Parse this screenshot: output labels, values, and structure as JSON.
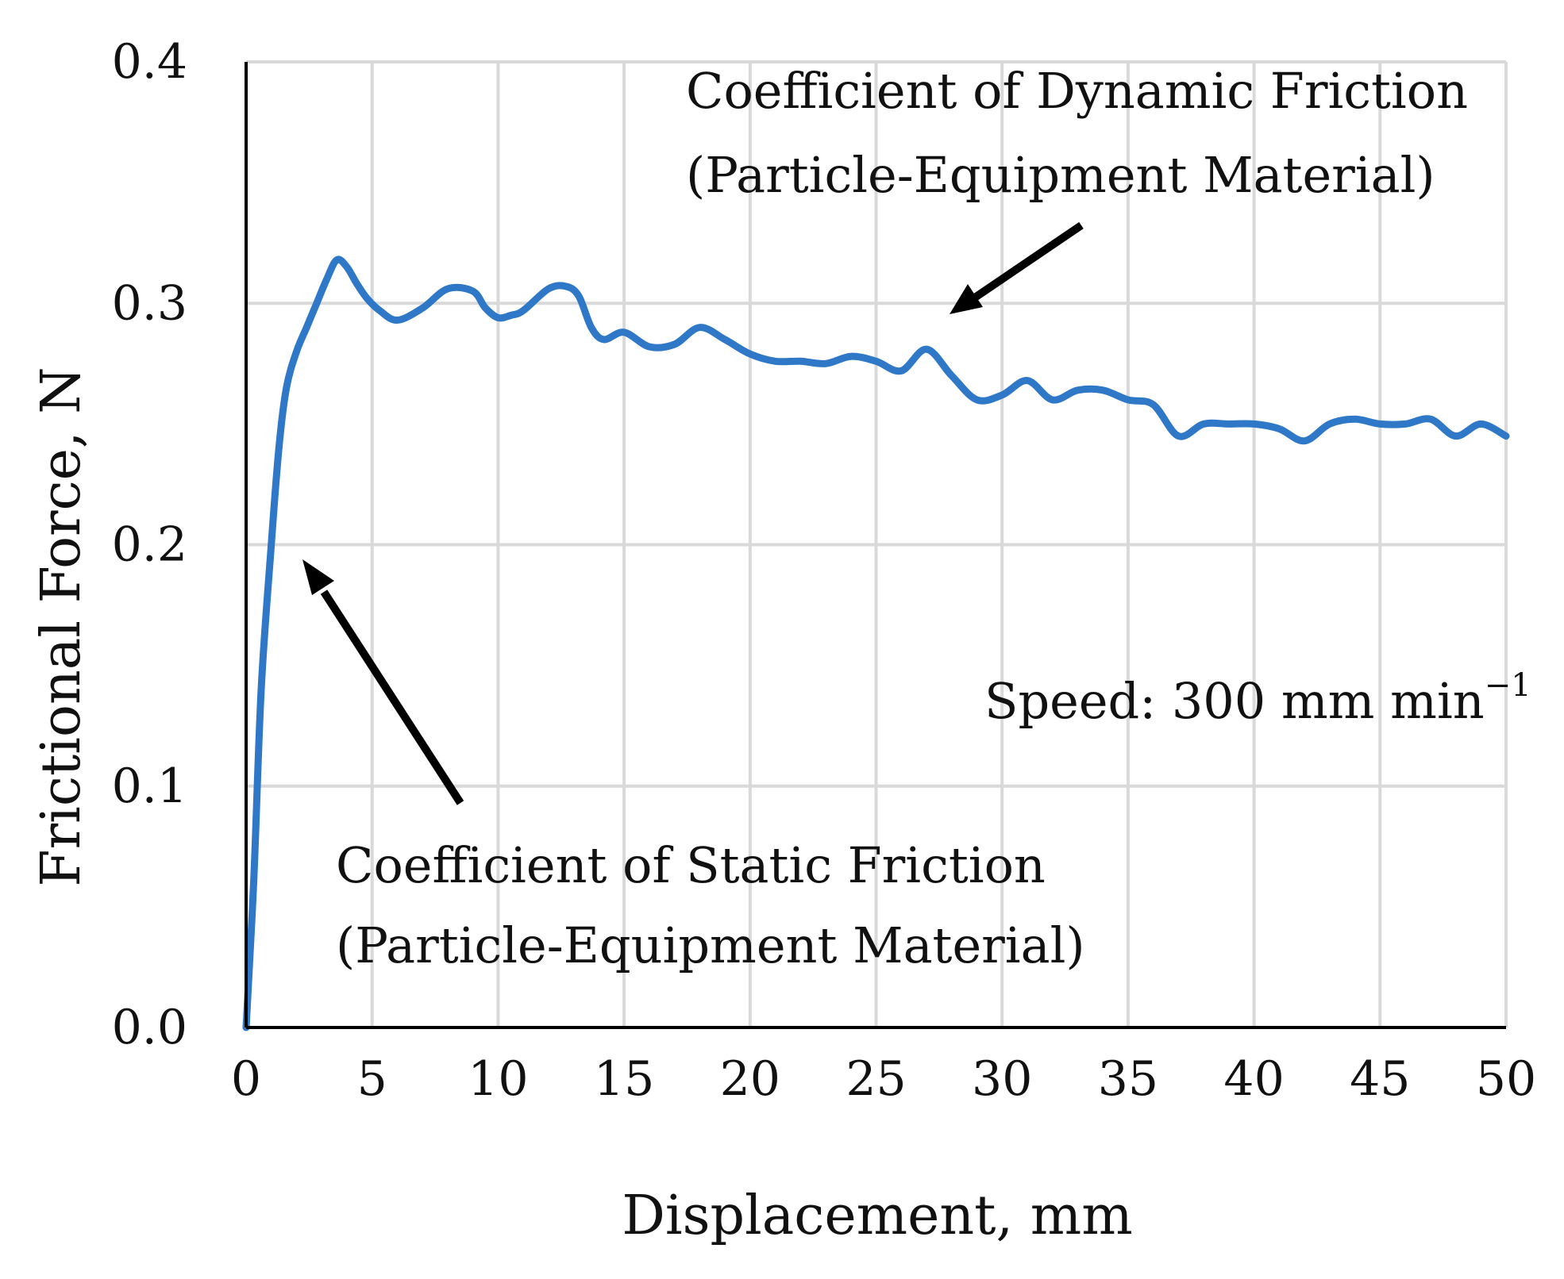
{
  "chart_data": {
    "type": "line",
    "title": "",
    "xlabel": "Displacement, mm",
    "ylabel": "Frictional Force, N",
    "xlim": [
      0,
      50
    ],
    "ylim": [
      0,
      0.4
    ],
    "grid": true,
    "x_ticks": [
      0,
      5,
      10,
      15,
      20,
      25,
      30,
      35,
      40,
      45,
      50
    ],
    "x_tick_labels": [
      "0",
      "5",
      "10",
      "15",
      "20",
      "25",
      "30",
      "35",
      "40",
      "45",
      "50"
    ],
    "y_ticks": [
      0,
      0.1,
      0.2,
      0.3,
      0.4
    ],
    "y_tick_labels": [
      "0.0",
      "0.1",
      "0.2",
      "0.3",
      "0.4"
    ],
    "line_color": "#2f78c8",
    "series": [
      {
        "name": "Frictional Force",
        "x": [
          0,
          0.3,
          0.6,
          1.0,
          1.3,
          1.6,
          2.0,
          2.4,
          2.8,
          3.2,
          3.6,
          4.0,
          4.4,
          4.8,
          5.3,
          6.0,
          7.0,
          8.0,
          9.0,
          9.5,
          10.0,
          10.5,
          11.0,
          12.0,
          12.7,
          13.2,
          13.7,
          14.2,
          15.0,
          16.0,
          17.0,
          18.0,
          19.0,
          20.0,
          21.0,
          22.0,
          23.0,
          24.0,
          25.0,
          26.0,
          27.0,
          28.0,
          29.0,
          30.0,
          31.0,
          32.0,
          33.0,
          34.0,
          35.0,
          36.0,
          37.0,
          38.0,
          39.0,
          40.0,
          41.0,
          42.0,
          43.0,
          44.0,
          45.0,
          46.0,
          47.0,
          48.0,
          49.0,
          50.0
        ],
        "y": [
          0.0,
          0.06,
          0.14,
          0.2,
          0.24,
          0.265,
          0.28,
          0.29,
          0.3,
          0.31,
          0.318,
          0.315,
          0.308,
          0.302,
          0.297,
          0.293,
          0.298,
          0.306,
          0.305,
          0.298,
          0.294,
          0.295,
          0.297,
          0.306,
          0.307,
          0.303,
          0.29,
          0.285,
          0.288,
          0.282,
          0.283,
          0.29,
          0.285,
          0.279,
          0.276,
          0.276,
          0.275,
          0.278,
          0.276,
          0.272,
          0.281,
          0.27,
          0.26,
          0.262,
          0.268,
          0.26,
          0.264,
          0.264,
          0.26,
          0.258,
          0.245,
          0.25,
          0.25,
          0.25,
          0.248,
          0.243,
          0.25,
          0.252,
          0.25,
          0.25,
          0.252,
          0.245,
          0.25,
          0.245
        ]
      }
    ],
    "annotations": [
      {
        "name": "dynamic",
        "lines": [
          "Coefficient of Dynamic Friction",
          "(Particle-Equipment Material)"
        ]
      },
      {
        "name": "static",
        "lines": [
          "Coefficient of Static Friction",
          "(Particle-Equipment Material)"
        ]
      }
    ],
    "speed_note": {
      "prefix": "Speed: 300 mm min",
      "sup": "−1"
    }
  }
}
